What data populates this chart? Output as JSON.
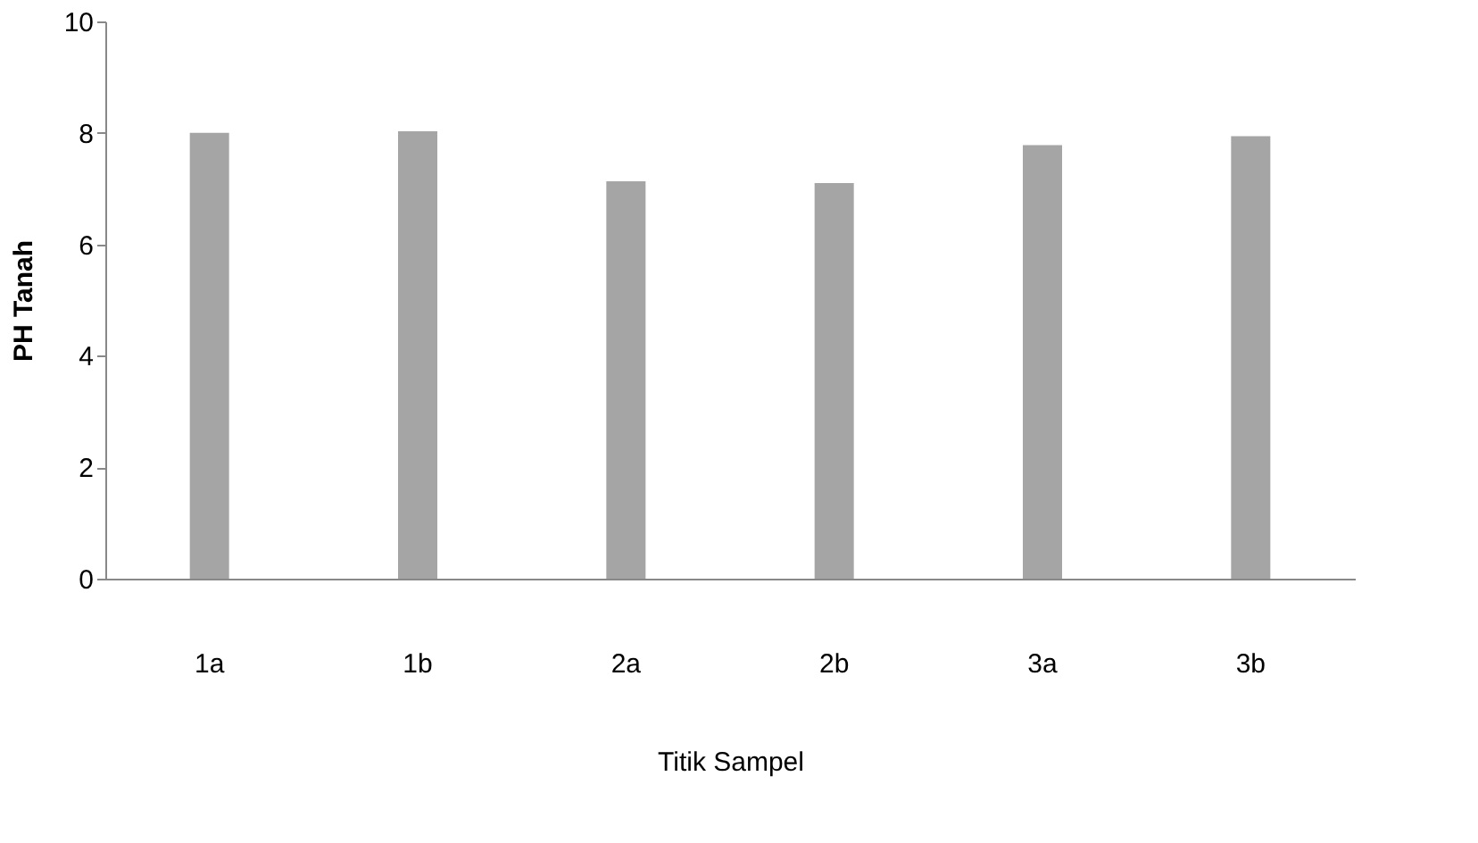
{
  "chart_data": {
    "type": "bar",
    "xlabel": "Titik Sampel",
    "ylabel": "PH Tanah",
    "categories": [
      "1a",
      "1b",
      "2a",
      "2b",
      "3a",
      "3b"
    ],
    "values": [
      8.0,
      8.03,
      7.13,
      7.1,
      7.78,
      7.94
    ],
    "color": "#a5a5a5",
    "ylim": [
      0,
      10
    ],
    "yticks": [
      0,
      2,
      4,
      6,
      8,
      10
    ],
    "grid": false
  }
}
